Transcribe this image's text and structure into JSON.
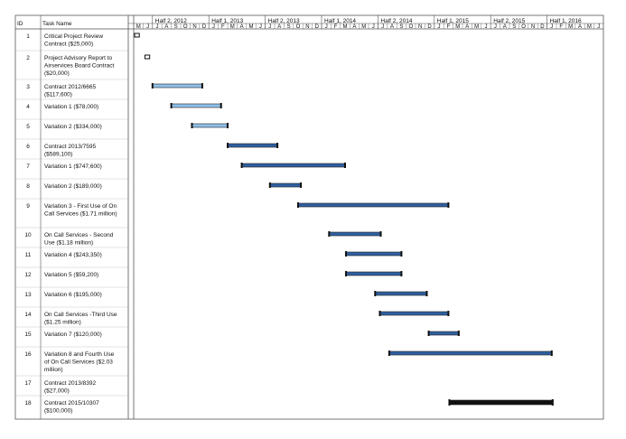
{
  "columns": {
    "id": "ID",
    "name": "Task Name"
  },
  "colors": {
    "light_bar": "#8fc0ea",
    "blue_bar": "#2f5f9e",
    "black_bar": "#111111",
    "grid": "#c8c8c8",
    "border": "#555555"
  },
  "chart_data": {
    "type": "gantt",
    "timescale": {
      "halves": [
        "Half 2, 2012",
        "Half 1, 2013",
        "Half 2, 2013",
        "Half 1, 2014",
        "Half 2, 2014",
        "Half 1, 2015",
        "Half 2, 2015",
        "Half 1, 2016"
      ],
      "month_letters": [
        "M",
        "J",
        "J",
        "A",
        "S",
        "O",
        "N",
        "D",
        "J",
        "F",
        "M",
        "A",
        "M",
        "J",
        "J",
        "A",
        "S",
        "O",
        "N",
        "D",
        "J",
        "F",
        "M",
        "A",
        "M",
        "J",
        "J",
        "A",
        "S",
        "O",
        "N",
        "D",
        "J",
        "F",
        "M",
        "A",
        "M",
        "J",
        "J",
        "A",
        "S",
        "O",
        "N",
        "D",
        "J",
        "F",
        "M",
        "A",
        "M",
        "J"
      ],
      "start_month": "2012-05",
      "end_month": "2016-06"
    },
    "tasks": [
      {
        "id": "1",
        "name": [
          "Critical Project Review",
          "Contract ($25,000)"
        ],
        "start": 0.1,
        "end": 0.6,
        "style": "milestone"
      },
      {
        "id": "2",
        "name": [
          "Project Advisory Report to",
          "Airservices Board Contract",
          "($20,000)"
        ],
        "start": 1.2,
        "end": 1.7,
        "style": "milestone"
      },
      {
        "id": "3",
        "name": [
          "Contract 2012/6665",
          "($117,600)"
        ],
        "start": 2.0,
        "end": 7.3,
        "style": "light"
      },
      {
        "id": "4",
        "name": [
          "Variation 1 ($78,000)"
        ],
        "start": 4.0,
        "end": 9.3,
        "style": "light"
      },
      {
        "id": "5",
        "name": [
          "Variation 2 ($334,000)"
        ],
        "start": 6.2,
        "end": 10.0,
        "style": "light"
      },
      {
        "id": "6",
        "name": [
          "Contract 2013/7595",
          "($589,100)"
        ],
        "start": 10.0,
        "end": 15.3,
        "style": "blue"
      },
      {
        "id": "7",
        "name": [
          "Variation 1 ($747,600)"
        ],
        "start": 11.5,
        "end": 22.5,
        "style": "blue"
      },
      {
        "id": "8",
        "name": [
          "Variation 2 ($189,000)"
        ],
        "start": 14.5,
        "end": 17.8,
        "style": "blue"
      },
      {
        "id": "9",
        "name": [
          "Variation 3 - First Use of On",
          "Call Services ($1.71 million)"
        ],
        "start": 17.5,
        "end": 33.5,
        "style": "blue"
      },
      {
        "id": "10",
        "name": [
          "On Call Services - Second",
          "Use ($1.18 million)"
        ],
        "start": 20.8,
        "end": 26.3,
        "style": "blue"
      },
      {
        "id": "11",
        "name": [
          "Variation 4 ($243,350)"
        ],
        "start": 22.6,
        "end": 28.5,
        "style": "blue"
      },
      {
        "id": "12",
        "name": [
          "Variation 5 ($59,200)"
        ],
        "start": 22.6,
        "end": 28.5,
        "style": "blue"
      },
      {
        "id": "13",
        "name": [
          "Variation 6 ($195,000)"
        ],
        "start": 25.7,
        "end": 31.2,
        "style": "blue"
      },
      {
        "id": "14",
        "name": [
          "On Call Services -Third Use",
          "($1.25 million)"
        ],
        "start": 26.2,
        "end": 33.5,
        "style": "blue"
      },
      {
        "id": "15",
        "name": [
          "Variation 7 ($120,000)"
        ],
        "start": 31.4,
        "end": 34.6,
        "style": "blue"
      },
      {
        "id": "16",
        "name": [
          "Variation 8 and Fourth Use",
          "of On Call Services ($2.03",
          "million)"
        ],
        "start": 27.2,
        "end": 44.5,
        "style": "blue"
      },
      {
        "id": "17",
        "name": [
          "Contract 2013/8392",
          "($27,000)"
        ],
        "start": null,
        "end": null,
        "style": "none"
      },
      {
        "id": "18",
        "name": [
          "Contract 2015/10307",
          "($100,000)"
        ],
        "start": 33.6,
        "end": 44.6,
        "style": "black"
      }
    ]
  }
}
